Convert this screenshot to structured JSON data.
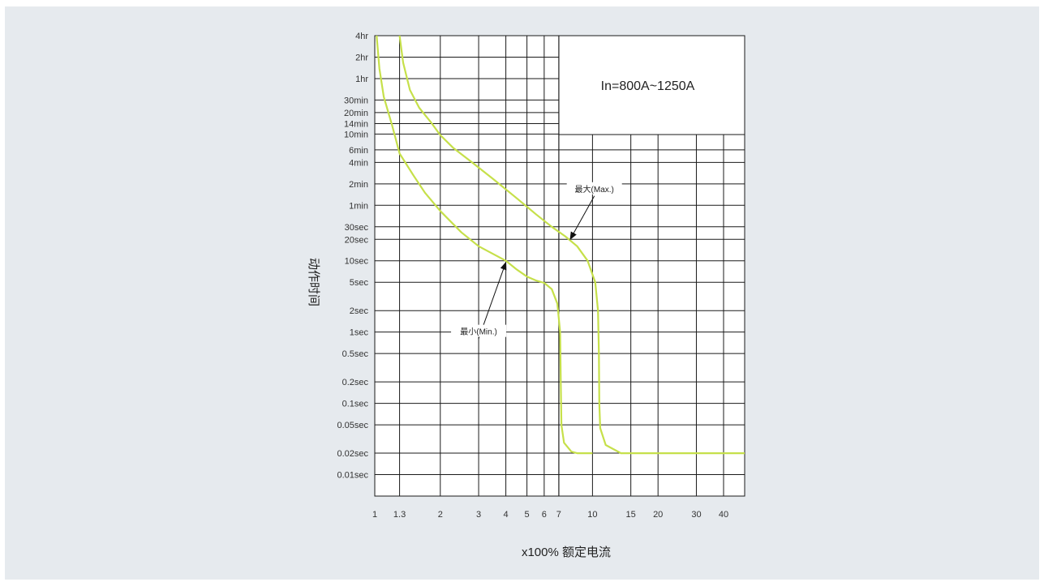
{
  "chart_data": {
    "type": "line",
    "title": "In=800A~1250A",
    "xlabel": "x100% 额定电流",
    "ylabel": "动作时间",
    "x_scale": "log",
    "y_scale": "log",
    "x_ticks": [
      {
        "v": 1,
        "label": "1"
      },
      {
        "v": 1.3,
        "label": "1.3"
      },
      {
        "v": 2,
        "label": "2"
      },
      {
        "v": 3,
        "label": "3"
      },
      {
        "v": 4,
        "label": "4"
      },
      {
        "v": 5,
        "label": "5"
      },
      {
        "v": 6,
        "label": "6"
      },
      {
        "v": 7,
        "label": "7"
      },
      {
        "v": 10,
        "label": "10"
      },
      {
        "v": 15,
        "label": "15"
      },
      {
        "v": 20,
        "label": "20"
      },
      {
        "v": 30,
        "label": "30"
      },
      {
        "v": 40,
        "label": "40"
      }
    ],
    "y_ticks": [
      {
        "v": 14400,
        "label": "4hr"
      },
      {
        "v": 7200,
        "label": "2hr"
      },
      {
        "v": 3600,
        "label": "1hr"
      },
      {
        "v": 1800,
        "label": "30min"
      },
      {
        "v": 1200,
        "label": "20min"
      },
      {
        "v": 840,
        "label": "14min"
      },
      {
        "v": 600,
        "label": "10min"
      },
      {
        "v": 360,
        "label": "6min"
      },
      {
        "v": 240,
        "label": "4min"
      },
      {
        "v": 120,
        "label": "2min"
      },
      {
        "v": 60,
        "label": "1min"
      },
      {
        "v": 30,
        "label": "30sec"
      },
      {
        "v": 20,
        "label": "20sec"
      },
      {
        "v": 10,
        "label": "10sec"
      },
      {
        "v": 5,
        "label": "5sec"
      },
      {
        "v": 2,
        "label": "2sec"
      },
      {
        "v": 1,
        "label": "1sec"
      },
      {
        "v": 0.5,
        "label": "0.5sec"
      },
      {
        "v": 0.2,
        "label": "0.2sec"
      },
      {
        "v": 0.1,
        "label": "0.1sec"
      },
      {
        "v": 0.05,
        "label": "0.05sec"
      },
      {
        "v": 0.02,
        "label": "0.02sec"
      },
      {
        "v": 0.01,
        "label": "0.01sec"
      }
    ],
    "x_range": [
      1,
      50
    ],
    "y_range": [
      0.005,
      14400
    ],
    "series": [
      {
        "name": "最小(Min.)",
        "color": "#c6e04a",
        "points": [
          [
            1.02,
            14400
          ],
          [
            1.05,
            5000
          ],
          [
            1.1,
            2000
          ],
          [
            1.2,
            800
          ],
          [
            1.3,
            320
          ],
          [
            1.5,
            160
          ],
          [
            1.7,
            90
          ],
          [
            2.0,
            50
          ],
          [
            2.5,
            25
          ],
          [
            3.0,
            16
          ],
          [
            4.0,
            10
          ],
          [
            4.5,
            7.5
          ],
          [
            5.0,
            6.0
          ],
          [
            5.5,
            5.3
          ],
          [
            6.0,
            4.9
          ],
          [
            6.5,
            4.0
          ],
          [
            6.9,
            2.5
          ],
          [
            7.1,
            1.0
          ],
          [
            7.15,
            0.2
          ],
          [
            7.2,
            0.05
          ],
          [
            7.4,
            0.028
          ],
          [
            8.0,
            0.021
          ],
          [
            8.5,
            0.02
          ],
          [
            10,
            0.02
          ]
        ]
      },
      {
        "name": "最大(Max.)",
        "color": "#c6e04a",
        "points": [
          [
            1.3,
            14400
          ],
          [
            1.35,
            6000
          ],
          [
            1.45,
            2500
          ],
          [
            1.6,
            1400
          ],
          [
            1.8,
            900
          ],
          [
            2.0,
            580
          ],
          [
            2.3,
            380
          ],
          [
            2.8,
            240
          ],
          [
            3.5,
            140
          ],
          [
            4.5,
            75
          ],
          [
            5.5,
            45
          ],
          [
            6.5,
            30
          ],
          [
            7.5,
            22
          ],
          [
            8.5,
            16
          ],
          [
            9.5,
            10
          ],
          [
            10.3,
            5.0
          ],
          [
            10.6,
            2.0
          ],
          [
            10.7,
            0.5
          ],
          [
            10.75,
            0.1
          ],
          [
            10.85,
            0.045
          ],
          [
            11.5,
            0.026
          ],
          [
            13.5,
            0.02
          ],
          [
            20,
            0.02
          ],
          [
            40,
            0.02
          ],
          [
            50,
            0.02
          ]
        ]
      }
    ],
    "annotations": [
      {
        "text": "最大(Max.)",
        "x": 10.2,
        "y": 100,
        "arrow_to": [
          7.9,
          20
        ]
      },
      {
        "text": "最小(Min.)",
        "x": 3.0,
        "y": 1.0,
        "arrow_to": [
          4.0,
          9.5
        ]
      }
    ],
    "inset_label": "In=800A~1250A"
  }
}
